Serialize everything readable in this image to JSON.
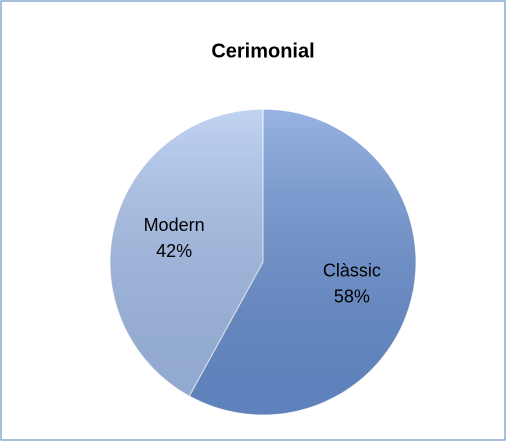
{
  "chart_data": {
    "type": "pie",
    "title": "Cerimonial",
    "categories": [
      "Clàssic",
      "Modern"
    ],
    "values": [
      58,
      42
    ],
    "value_labels": [
      "58%",
      "42%"
    ],
    "colors": [
      "#6a93d6",
      "#a6c1ee"
    ]
  }
}
